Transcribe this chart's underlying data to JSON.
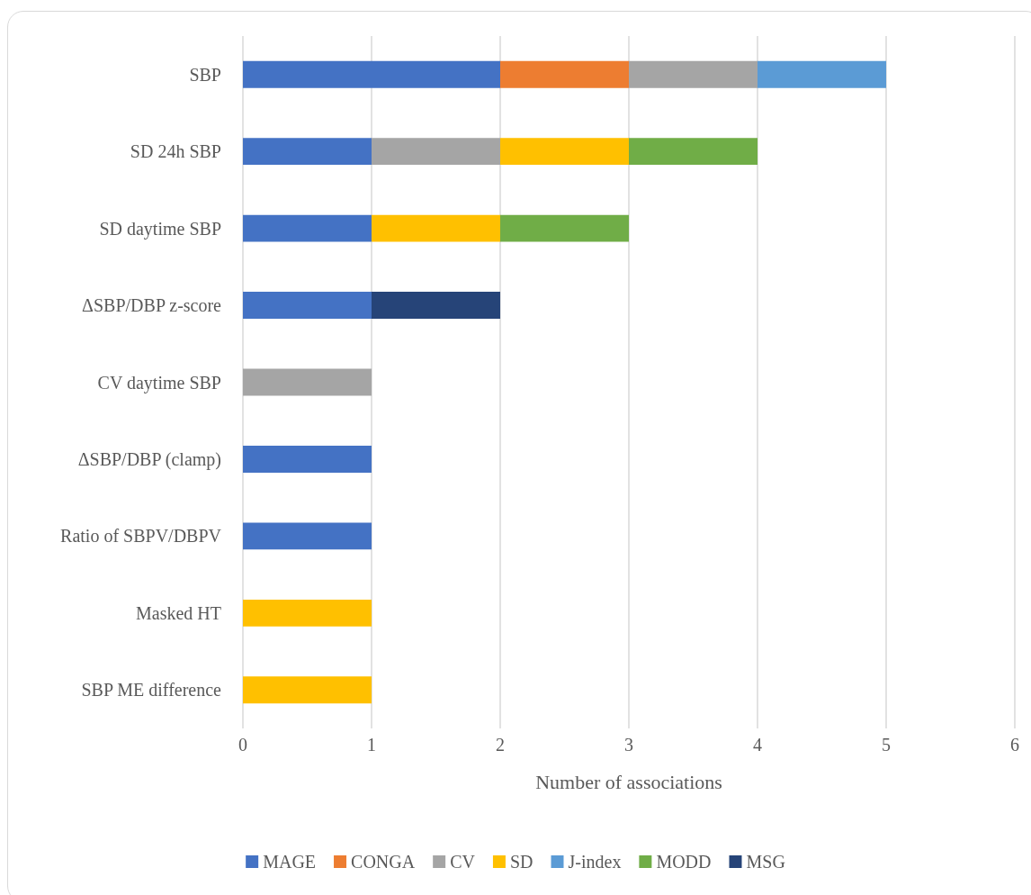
{
  "chart_data": {
    "type": "bar",
    "orientation": "horizontal",
    "stacked": true,
    "xlabel": "Number of associations",
    "categories": [
      "SBP",
      "SD 24h SBP",
      "SD daytime SBP",
      "ΔSBP/DBP z-score",
      "CV daytime SBP",
      "ΔSBP/DBP (clamp)",
      "Ratio of SBPV/DBPV",
      "Masked HT",
      "SBP ME difference"
    ],
    "series": [
      {
        "name": "MAGE",
        "color": "#4472c4",
        "values": [
          2,
          1,
          1,
          1,
          null,
          1,
          1,
          null,
          null
        ]
      },
      {
        "name": "CONGA",
        "color": "#ed7d31",
        "values": [
          1,
          null,
          null,
          null,
          null,
          null,
          null,
          null,
          null
        ]
      },
      {
        "name": "CV",
        "color": "#a5a5a5",
        "values": [
          1,
          1,
          null,
          null,
          1,
          null,
          null,
          null,
          null
        ]
      },
      {
        "name": "SD",
        "color": "#ffc000",
        "values": [
          null,
          1,
          1,
          null,
          null,
          null,
          null,
          1,
          1
        ]
      },
      {
        "name": "J-index",
        "color": "#5b9bd5",
        "values": [
          1,
          null,
          null,
          null,
          null,
          null,
          null,
          null,
          null
        ]
      },
      {
        "name": "MODD",
        "color": "#70ad47",
        "values": [
          null,
          1,
          1,
          null,
          null,
          null,
          null,
          null,
          null
        ]
      },
      {
        "name": "MSG",
        "color": "#264478",
        "values": [
          null,
          null,
          null,
          1,
          null,
          null,
          null,
          null,
          null
        ]
      }
    ],
    "xlim": [
      0,
      6
    ],
    "xticks": [
      0,
      1,
      2,
      3,
      4,
      5,
      6
    ],
    "grid": "x",
    "legend": "bottom"
  }
}
